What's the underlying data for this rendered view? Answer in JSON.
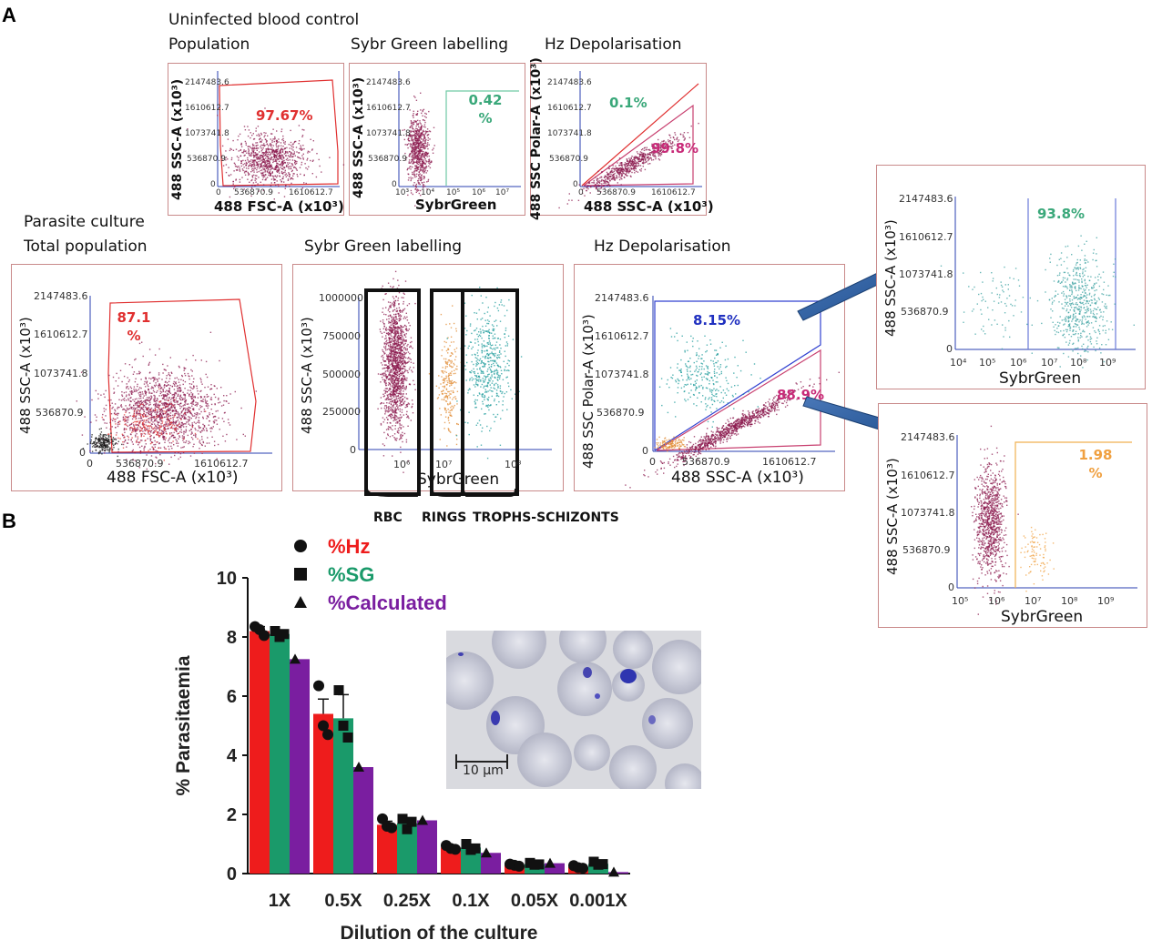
{
  "panel_a": {
    "letter": "A",
    "uninfected": {
      "title": "Uninfected blood control",
      "population": {
        "caption": "Population",
        "ylabel": "488 SSC-A (x10³)",
        "xlabel": "488 FSC-A (x10³)",
        "percent": "97.67%",
        "yticks": [
          "2147483.6",
          "1610612.7",
          "1073741.8",
          "536870.9",
          "0"
        ],
        "xticks": [
          "0",
          "536870.9",
          "1610612.7"
        ]
      },
      "sybr": {
        "caption": "Sybr Green labelling",
        "ylabel": "488 SSC-A (x10³)",
        "xlabel": "SybrGreen",
        "percent": "0.42 %",
        "yticks": [
          "2147483.6",
          "1610612.7",
          "1073741.8",
          "536870.9",
          "0"
        ],
        "xticks": [
          "10³",
          "10⁴",
          "10⁵",
          "10⁶",
          "10⁷"
        ]
      },
      "hz": {
        "caption": "Hz Depolarisation",
        "ylabel": "488 SSC Polar-A (x10³)",
        "xlabel": "488 SSC-A (x10³)",
        "percent_top": "0.1%",
        "percent_bottom": "99.8%",
        "yticks": [
          "2147483.6",
          "1610612.7",
          "1073741.8",
          "536870.9",
          "0"
        ],
        "xticks": [
          "0",
          "536870.9",
          "1610612.7"
        ]
      }
    },
    "parasite": {
      "title": "Parasite culture",
      "total": {
        "caption": "Total population",
        "ylabel": "488 SSC-A (x10³)",
        "xlabel": "488 FSC-A (x10³)",
        "percent": "87.1 %",
        "yticks": [
          "2147483.6",
          "1610612.7",
          "1073741.8",
          "536870.9",
          "0"
        ],
        "xticks": [
          "0",
          "536870.9",
          "1610612.7"
        ]
      },
      "sybr": {
        "caption": "Sybr Green labelling",
        "ylabel": "488 SSC-A (x10³)",
        "xlabel": "SybrGreen",
        "yticks": [
          "1000000",
          "750000",
          "500000",
          "250000",
          "0"
        ],
        "xticks": [
          "10⁶",
          "10⁷",
          "10⁸"
        ]
      },
      "hz": {
        "caption": "Hz Depolarisation",
        "ylabel": "488 SSC Polar-A (x10³)",
        "xlabel": "488 SSC-A (x10³)",
        "percent_top": "8.15%",
        "percent_bottom": "88.9%",
        "yticks": [
          "2147483.6",
          "1610612.7",
          "1073741.8",
          "536870.9",
          "0"
        ],
        "xticks": [
          "0",
          "536870.9",
          "1610612.7"
        ]
      },
      "gates": {
        "rbc": "RBC",
        "rings": "RINGS",
        "trophs": "TROPHS-SCHIZONTS"
      }
    },
    "right_top": {
      "ylabel": "488 SSC-A (x10³)",
      "xlabel": "SybrGreen",
      "percent": "93.8%",
      "yticks": [
        "2147483.6",
        "1610612.7",
        "1073741.8",
        "536870.9",
        "0"
      ],
      "xticks": [
        "10⁴",
        "10⁵",
        "10⁶",
        "10⁷",
        "10⁸",
        "10⁹"
      ]
    },
    "right_bottom": {
      "ylabel": "488 SSC-A (x10³)",
      "xlabel": "SybrGreen",
      "percent": "1.98 %",
      "yticks": [
        "2147483.6",
        "1610612.7",
        "1073741.8",
        "536870.9",
        "0"
      ],
      "xticks": [
        "10⁵",
        "10⁶",
        "10⁷",
        "10⁸",
        "10⁹"
      ]
    }
  },
  "panel_b": {
    "letter": "B",
    "scale_bar": "10 µm"
  },
  "colors": {
    "hz": "#ee1c1c",
    "sg": "#1a9a6a",
    "calc": "#7a1ea0",
    "gate_red": "#e03030",
    "frame": "#c98a8a",
    "axis_blue": "#2a3fb0"
  },
  "chart_data": {
    "type": "bar",
    "title": "",
    "xlabel": "Dilution of the culture",
    "ylabel": "% Parasitaemia",
    "ylim": [
      0,
      10
    ],
    "yticks": [
      "0",
      "2",
      "4",
      "6",
      "8",
      "10"
    ],
    "categories": [
      "1X",
      "0.5X",
      "0.25X",
      "0.1X",
      "0.05X",
      "0.001X"
    ],
    "series": [
      {
        "name": "%Hz",
        "color": "#ee1c1c",
        "marker": "circle",
        "values": [
          8.2,
          5.4,
          1.65,
          0.88,
          0.28,
          0.22
        ],
        "errors": [
          0.15,
          0.5,
          0.12,
          0.06,
          0.03,
          0.04
        ],
        "points": [
          [
            8.35,
            8.25,
            8.05
          ],
          [
            6.35,
            5.0,
            4.7
          ],
          [
            1.85,
            1.6,
            1.55
          ],
          [
            0.95,
            0.85,
            0.82
          ],
          [
            0.32,
            0.28,
            0.25
          ],
          [
            0.27,
            0.2,
            0.18
          ]
        ]
      },
      {
        "name": "%SG",
        "color": "#1a9a6a",
        "marker": "square",
        "values": [
          8.1,
          5.25,
          1.7,
          0.88,
          0.32,
          0.33
        ],
        "errors": [
          0.12,
          0.8,
          0.15,
          0.1,
          0.04,
          0.05
        ],
        "points": [
          [
            8.2,
            8.0,
            8.1
          ],
          [
            6.2,
            5.0,
            4.6
          ],
          [
            1.85,
            1.5,
            1.75
          ],
          [
            1.0,
            0.8,
            0.85
          ],
          [
            0.36,
            0.3,
            0.31
          ],
          [
            0.4,
            0.3,
            0.32
          ]
        ]
      },
      {
        "name": "%Calculated",
        "color": "#7a1ea0",
        "marker": "triangle",
        "values": [
          7.25,
          3.6,
          1.8,
          0.7,
          0.35,
          0.05
        ],
        "points": [
          [
            7.25
          ],
          [
            3.6
          ],
          [
            1.8
          ],
          [
            0.7
          ],
          [
            0.35
          ],
          [
            0.05
          ]
        ]
      }
    ]
  }
}
